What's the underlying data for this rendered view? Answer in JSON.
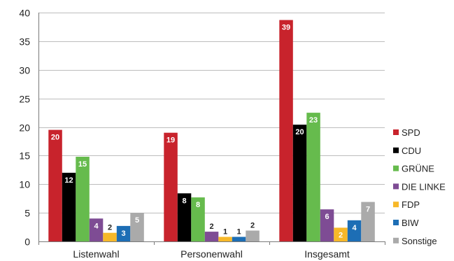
{
  "chart_data": {
    "type": "bar",
    "categories": [
      "Listenwahl",
      "Personenwahl",
      "Insgesamt"
    ],
    "series": [
      {
        "name": "SPD",
        "values": [
          19.5,
          19.0,
          38.7
        ],
        "labels": [
          "20",
          "19",
          "39"
        ],
        "color": "#c8232c"
      },
      {
        "name": "CDU",
        "values": [
          12.0,
          8.4,
          20.4
        ],
        "labels": [
          "12",
          "8",
          "20"
        ],
        "color": "#000000"
      },
      {
        "name": "GRÜNE",
        "values": [
          14.8,
          7.7,
          22.5
        ],
        "labels": [
          "15",
          "8",
          "23"
        ],
        "color": "#66bb4d"
      },
      {
        "name": "DIE LINKE",
        "values": [
          4.0,
          1.7,
          5.6
        ],
        "labels": [
          "4",
          "2",
          "6"
        ],
        "color": "#7e4c94"
      },
      {
        "name": "FDP",
        "values": [
          1.5,
          0.8,
          2.4
        ],
        "labels": [
          "2",
          "1",
          "2"
        ],
        "color": "#f7b829"
      },
      {
        "name": "BIW",
        "values": [
          2.7,
          0.8,
          3.7
        ],
        "labels": [
          "3",
          "1",
          "4"
        ],
        "color": "#1d6eb5"
      },
      {
        "name": "Sonstige",
        "values": [
          5.0,
          1.9,
          6.9
        ],
        "labels": [
          "5",
          "2",
          "7"
        ],
        "color": "#aaaaaa"
      }
    ],
    "yticks": [
      "0",
      "5",
      "10",
      "15",
      "20",
      "25",
      "30",
      "35",
      "40"
    ],
    "ylim": [
      0,
      40
    ],
    "grid": true,
    "legend_position": "right"
  }
}
